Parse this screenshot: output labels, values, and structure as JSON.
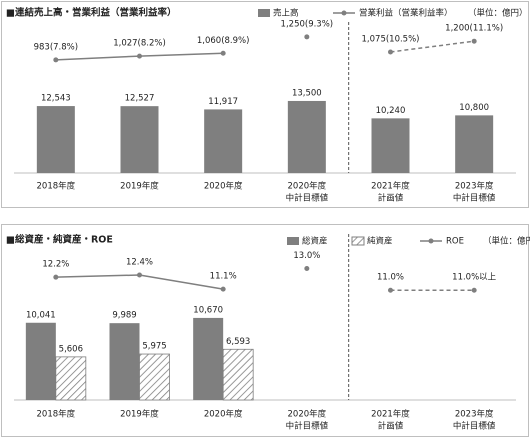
{
  "chart_data": [
    {
      "type": "combo",
      "title": "■連結売上高・営業利益（営業利益率）",
      "unit": "（単位：億円）",
      "categories": [
        "2018年度",
        "2019年度",
        "2020年度",
        "2020年度",
        "2021年度",
        "2023年度"
      ],
      "category_sublabels": [
        null,
        null,
        null,
        "中計目標値",
        "計画値",
        "中計目標値"
      ],
      "ylim": [
        0,
        26800
      ],
      "y2lim": [
        -330,
        1330
      ],
      "separator_after": 3,
      "series": [
        {
          "name": "売上高",
          "kind": "bar",
          "color": "#7f7f7f",
          "values": [
            12543,
            12527,
            11917,
            13500,
            10240,
            10800
          ],
          "value_labels": [
            "12,543",
            "12,527",
            "11,917",
            "13,500",
            "10,240",
            "10,800"
          ]
        },
        {
          "name": "営業利益（営業利益率）",
          "kind": "line",
          "axis": "y2",
          "color": "#7f7f7f",
          "values": [
            983,
            1027,
            1060,
            1250,
            1075,
            1200
          ],
          "value_labels": [
            "983(7.8%)",
            "1,027(8.2%)",
            "1,060(8.9%)",
            "1,250(9.3%)",
            "1,075(10.5%)",
            "1,200(11.1%)"
          ],
          "segments": [
            {
              "from": 0,
              "to": 2,
              "style": "solid"
            },
            {
              "from": 3,
              "to": 3,
              "style": "solid"
            },
            {
              "from": 4,
              "to": 5,
              "style": "dashed"
            }
          ]
        }
      ]
    },
    {
      "type": "combo",
      "title": "■総資産・純資産・ROE",
      "unit": "（単位：億円）",
      "categories": [
        "2018年度",
        "2019年度",
        "2020年度",
        "2020年度",
        "2021年度",
        "2023年度"
      ],
      "category_sublabels": [
        null,
        null,
        null,
        "中計目標値",
        "計画値",
        "中計目標値"
      ],
      "ylim": [
        0,
        19500
      ],
      "y2lim": [
        0.9,
        14.7
      ],
      "separator_after": 3,
      "series": [
        {
          "name": "総資産",
          "kind": "bar",
          "color": "#7f7f7f",
          "values": [
            10041,
            9989,
            10670,
            null,
            null,
            null
          ],
          "value_labels": [
            "10,041",
            "9,989",
            "10,670",
            null,
            null,
            null
          ]
        },
        {
          "name": "純資産",
          "kind": "bar",
          "color": "#7f7f7f",
          "pattern": "hatch",
          "values": [
            5606,
            5975,
            6593,
            null,
            null,
            null
          ],
          "value_labels": [
            "5,606",
            "5,975",
            "6,593",
            null,
            null,
            null
          ]
        },
        {
          "name": "ROE",
          "kind": "line",
          "axis": "y2",
          "color": "#7f7f7f",
          "values": [
            12.2,
            12.4,
            11.1,
            13.0,
            11.0,
            11.0
          ],
          "value_labels": [
            "12.2%",
            "12.4%",
            "11.1%",
            "13.0%",
            "11.0%",
            "11.0%以上"
          ],
          "segments": [
            {
              "from": 0,
              "to": 2,
              "style": "solid"
            },
            {
              "from": 3,
              "to": 3,
              "style": "solid"
            },
            {
              "from": 4,
              "to": 5,
              "style": "dashed"
            }
          ]
        }
      ]
    }
  ]
}
